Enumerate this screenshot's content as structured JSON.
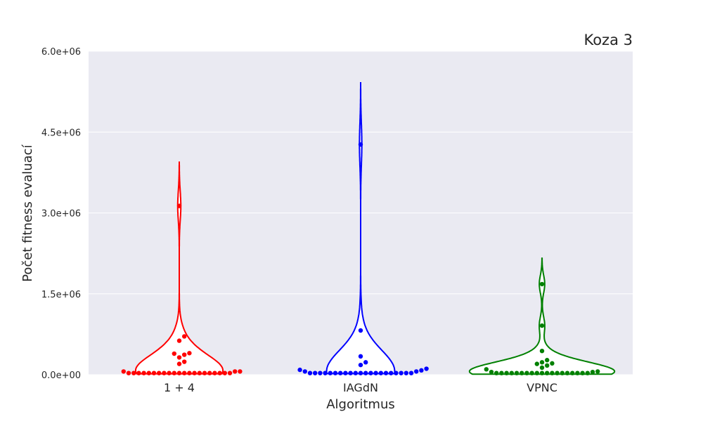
{
  "chart_data": {
    "type": "violin+swarm",
    "title": "Koza 3",
    "xlabel": "Algoritmus",
    "ylabel": "Počet fitness evaluací",
    "ylim": [
      0,
      6000000
    ],
    "yticks": [
      0,
      1500000,
      3000000,
      4500000,
      6000000
    ],
    "ytick_labels": [
      "0.0e+00",
      "1.5e+06",
      "3.0e+06",
      "4.5e+06",
      "6.0e+06"
    ],
    "grid": true,
    "categories": [
      "1 + 4",
      "IAGdN",
      "VPNC"
    ],
    "series": [
      {
        "color": "#ff0000",
        "values": [
          30000,
          30000,
          30000,
          30000,
          30000,
          30000,
          30000,
          30000,
          30000,
          30000,
          30000,
          30000,
          30000,
          30000,
          30000,
          30000,
          30000,
          30000,
          30000,
          30000,
          30000,
          60000,
          60000,
          60000,
          200000,
          240000,
          320000,
          370000,
          390000,
          400000,
          630000,
          710000,
          3130000
        ]
      },
      {
        "color": "#0000ff",
        "values": [
          30000,
          30000,
          30000,
          30000,
          30000,
          30000,
          30000,
          30000,
          30000,
          30000,
          30000,
          30000,
          30000,
          30000,
          30000,
          30000,
          30000,
          30000,
          30000,
          30000,
          30000,
          60000,
          60000,
          80000,
          90000,
          110000,
          180000,
          230000,
          340000,
          820000,
          4270000
        ]
      },
      {
        "color": "#008000",
        "values": [
          30000,
          30000,
          30000,
          30000,
          30000,
          30000,
          30000,
          30000,
          30000,
          30000,
          30000,
          30000,
          30000,
          30000,
          30000,
          30000,
          30000,
          30000,
          30000,
          50000,
          50000,
          60000,
          100000,
          130000,
          170000,
          200000,
          210000,
          230000,
          270000,
          440000,
          910000,
          1680000
        ]
      }
    ]
  }
}
